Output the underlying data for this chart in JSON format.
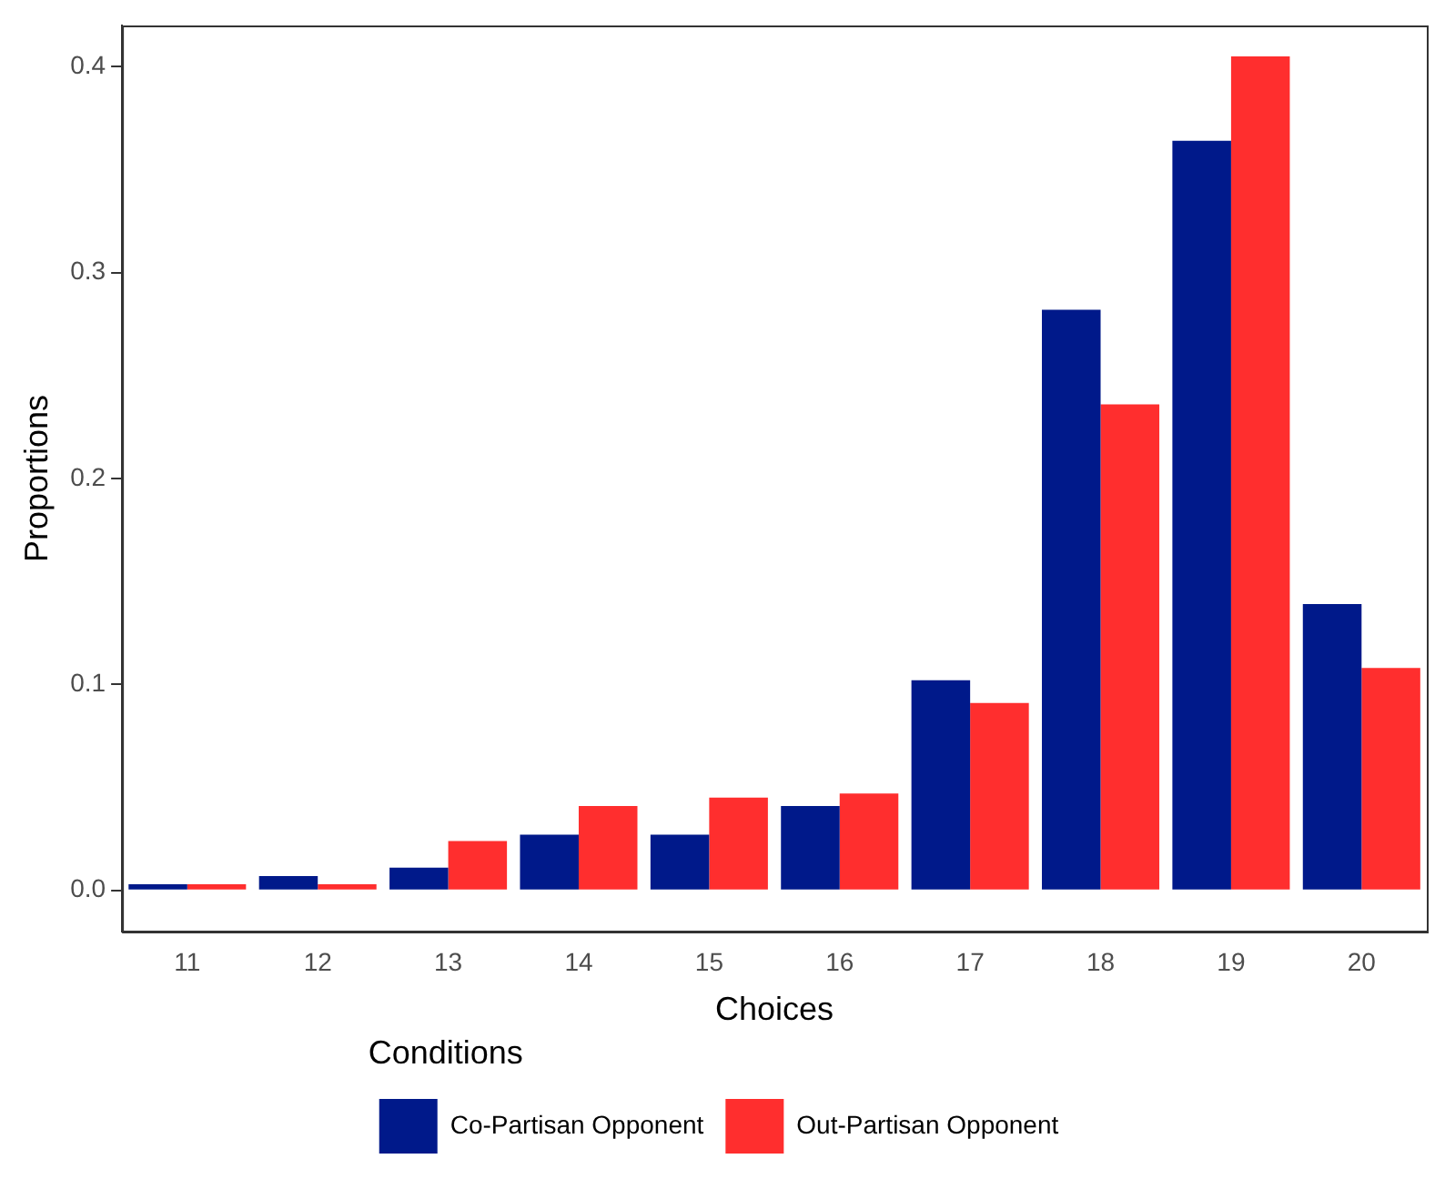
{
  "chart_data": {
    "type": "bar",
    "xlabel": "Choices",
    "ylabel": "Proportions",
    "legend_title": "Conditions",
    "categories": [
      "11",
      "12",
      "13",
      "14",
      "15",
      "16",
      "17",
      "18",
      "19",
      "20"
    ],
    "series": [
      {
        "name": "Co-Partisan Opponent",
        "color": "#00198a",
        "values": [
          0.003,
          0.007,
          0.011,
          0.027,
          0.027,
          0.041,
          0.102,
          0.282,
          0.364,
          0.139
        ]
      },
      {
        "name": "Out-Partisan Opponent",
        "color": "#ff2e2e",
        "values": [
          0.003,
          0.003,
          0.024,
          0.041,
          0.045,
          0.047,
          0.091,
          0.236,
          0.405,
          0.108
        ]
      }
    ],
    "ylim": [
      -0.02,
      0.42
    ],
    "yticks": [
      {
        "value": 0,
        "label": "0.0"
      },
      {
        "value": 0.1,
        "label": "0.1"
      },
      {
        "value": 0.2,
        "label": "0.2"
      },
      {
        "value": 0.3,
        "label": "0.3"
      },
      {
        "value": 0.4,
        "label": "0.4"
      }
    ],
    "grid": false,
    "legend": "bottom"
  }
}
